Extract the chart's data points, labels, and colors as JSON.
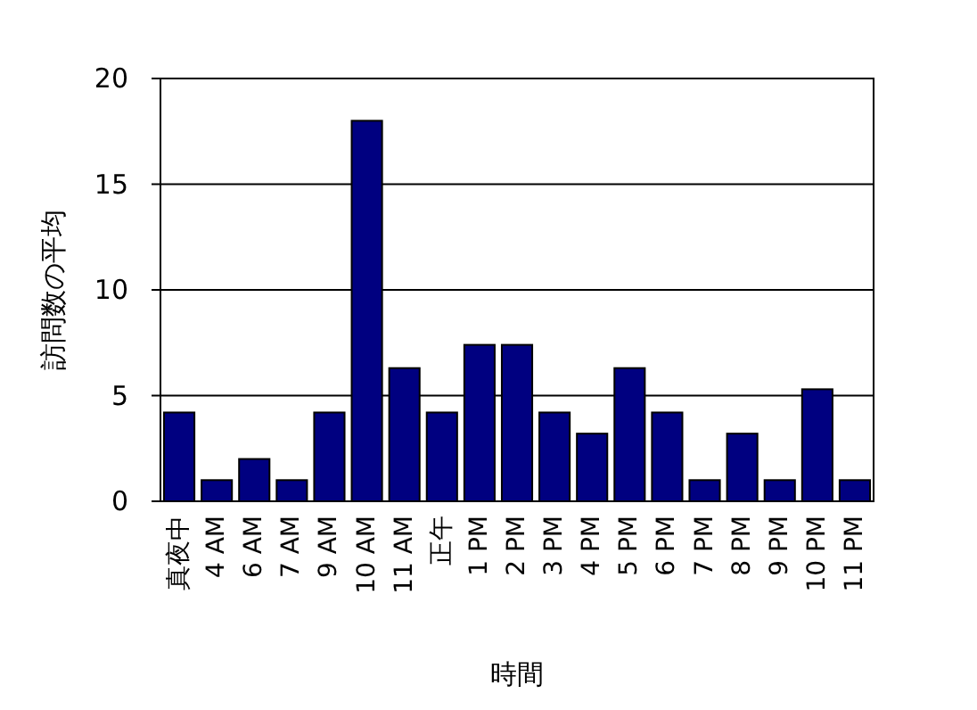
{
  "chart_data": {
    "type": "bar",
    "xlabel": "時間",
    "ylabel": "訪問数の平均",
    "categories": [
      "真夜中",
      "4 AM",
      "6 AM",
      "7 AM",
      "9 AM",
      "10 AM",
      "11 AM",
      "正午",
      "1 PM",
      "2 PM",
      "3 PM",
      "4 PM",
      "5 PM",
      "6 PM",
      "7 PM",
      "8 PM",
      "9 PM",
      "10 PM",
      "11 PM"
    ],
    "values": [
      4.2,
      1,
      2,
      1,
      4.2,
      18,
      6.3,
      4.2,
      7.4,
      7.4,
      4.2,
      3.2,
      6.3,
      4.2,
      1,
      3.2,
      1,
      5.3,
      1
    ],
    "color": "#000080",
    "ylim": [
      0,
      20
    ],
    "yticks": [
      0,
      5,
      10,
      15,
      20
    ],
    "grid": "y"
  }
}
